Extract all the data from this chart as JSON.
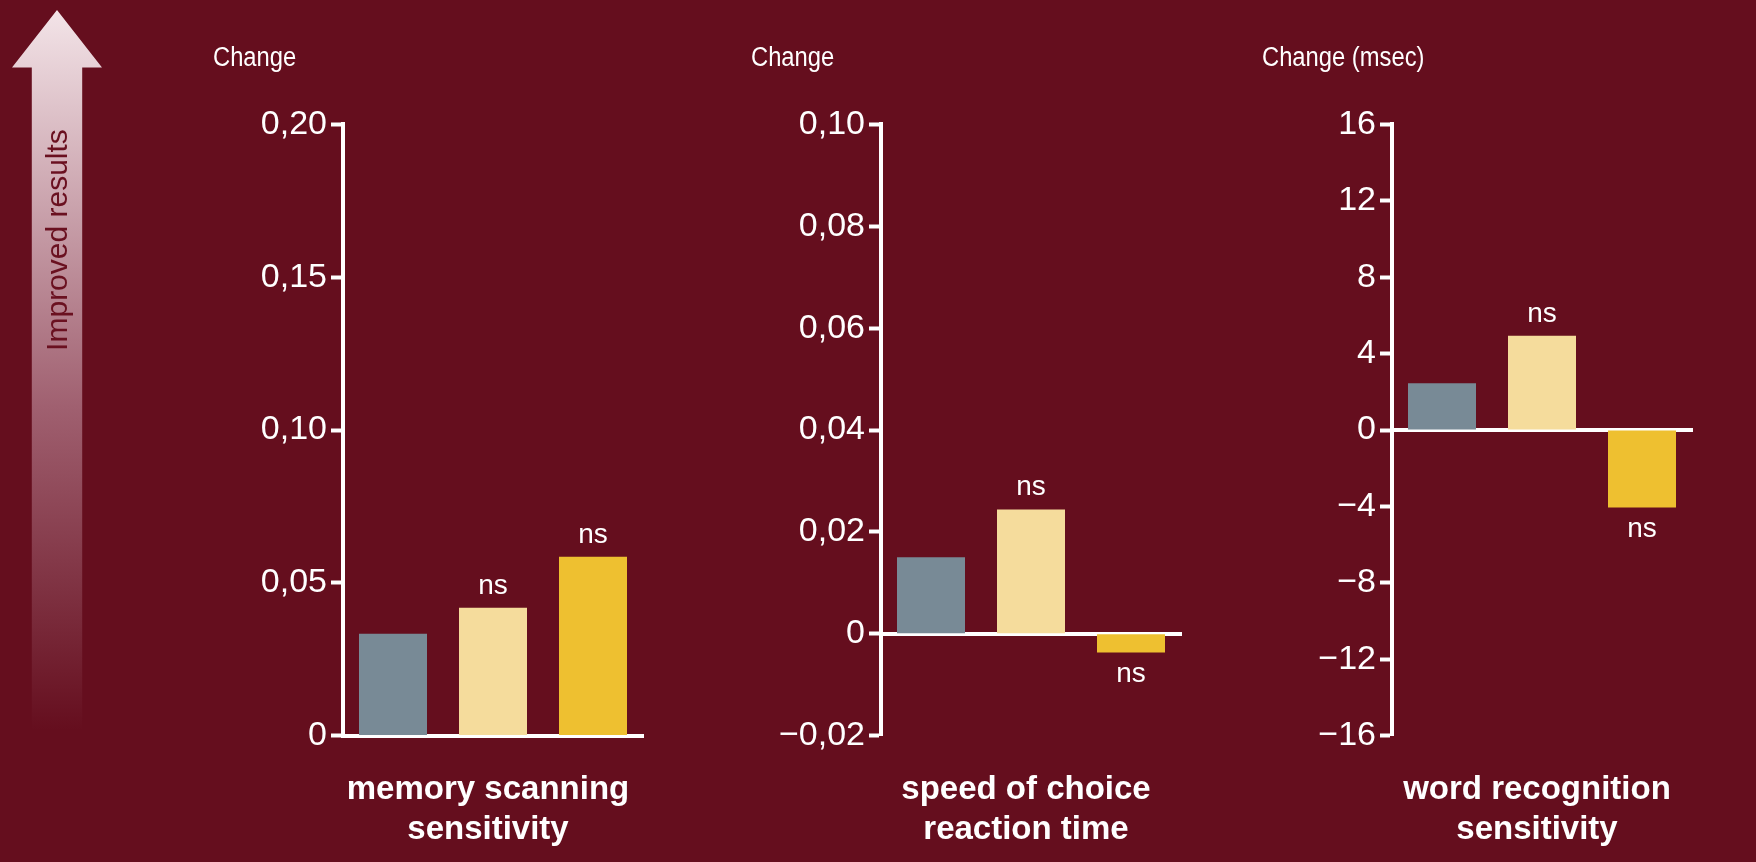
{
  "chart_data": [
    {
      "type": "bar",
      "ylabel": "Change",
      "xlabel": "memory scanning sensitivity",
      "annotations": [
        "Improved results"
      ],
      "categories": [
        null,
        null,
        null
      ],
      "values": [
        0.0333,
        0.0418,
        0.0585
      ],
      "colors": [
        "#788a96",
        "#f5dc9c",
        "#eec030"
      ],
      "value_labels": [
        null,
        "ns",
        "ns"
      ],
      "ylim": [
        0,
        0.2
      ],
      "yticks": [
        0,
        {
          "value": 0.05,
          "label": "0,05"
        },
        {
          "value": 0.1,
          "label": "0,10"
        },
        {
          "value": 0.15,
          "label": "0,15"
        },
        {
          "value": 0.2,
          "label": "0,20"
        }
      ]
    },
    {
      "type": "bar",
      "ylabel": "Change",
      "xlabel": "speed of choice reaction time",
      "categories": [
        null,
        null,
        null
      ],
      "values": [
        0.015,
        0.0244,
        -0.0037
      ],
      "colors": [
        "#788a96",
        "#f5dc9c",
        "#eec030"
      ],
      "value_labels": [
        null,
        "ns",
        "ns"
      ],
      "ylim": [
        -0.02,
        0.1
      ],
      "yticks": [
        {
          "value": -0.02,
          "label": "−0,02"
        },
        0,
        {
          "value": 0.02,
          "label": "0,02"
        },
        {
          "value": 0.04,
          "label": "0,04"
        },
        {
          "value": 0.06,
          "label": "0,06"
        },
        {
          "value": 0.08,
          "label": "0,08"
        },
        {
          "value": 0.1,
          "label": "0,10"
        }
      ]
    },
    {
      "type": "bar",
      "ylabel": "Change (msec)",
      "xlabel": "word recognition sensitivity",
      "categories": [
        null,
        null,
        null
      ],
      "values": [
        2.45,
        4.93,
        -4.06
      ],
      "colors": [
        "#788a96",
        "#f5dc9c",
        "#eec030"
      ],
      "value_labels": [
        null,
        "ns",
        "ns"
      ],
      "ylim": [
        -16,
        16
      ],
      "yticks": [
        {
          "value": -16,
          "label": "−16"
        },
        {
          "value": -12,
          "label": "−12"
        },
        {
          "value": -8,
          "label": "−8"
        },
        {
          "value": -4,
          "label": "−4"
        },
        0,
        4,
        8,
        12,
        16
      ]
    }
  ]
}
